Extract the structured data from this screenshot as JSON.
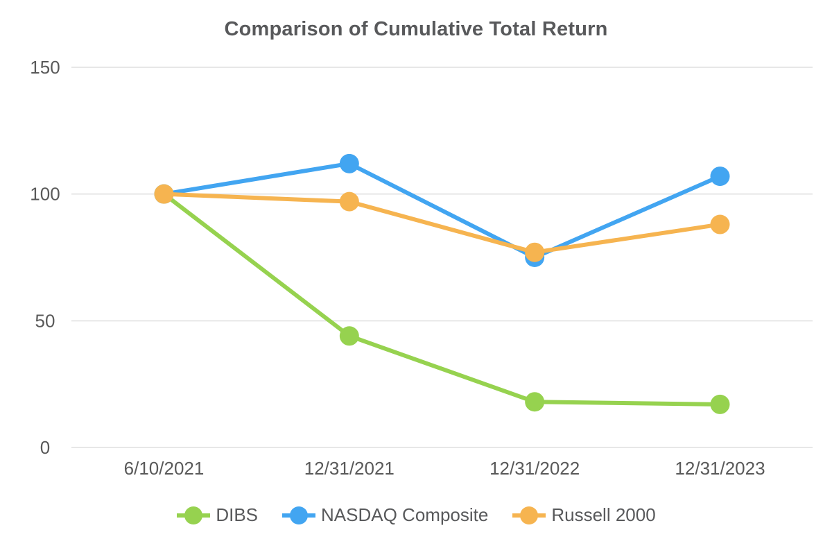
{
  "chart_data": {
    "type": "line",
    "title": "Comparison of Cumulative Total Return",
    "x_labels": [
      "6/10/2021",
      "12/31/2021",
      "12/31/2022",
      "12/31/2023"
    ],
    "y_ticks": [
      0,
      50,
      100,
      150
    ],
    "ylim": [
      0,
      150
    ],
    "grid": "horizontal-only",
    "gridline_color": "#e7e7e7",
    "tick_label_color": "#595959",
    "title_color": "#58595b",
    "legend_position": "bottom",
    "series": [
      {
        "name": "DIBS",
        "color": "#96d24f",
        "values": [
          100,
          44,
          18,
          17
        ]
      },
      {
        "name": "NASDAQ Composite",
        "color": "#42a5f1",
        "values": [
          100,
          112,
          75,
          107
        ]
      },
      {
        "name": "Russell 2000",
        "color": "#f6b450",
        "values": [
          100,
          97,
          77,
          88
        ]
      }
    ]
  }
}
